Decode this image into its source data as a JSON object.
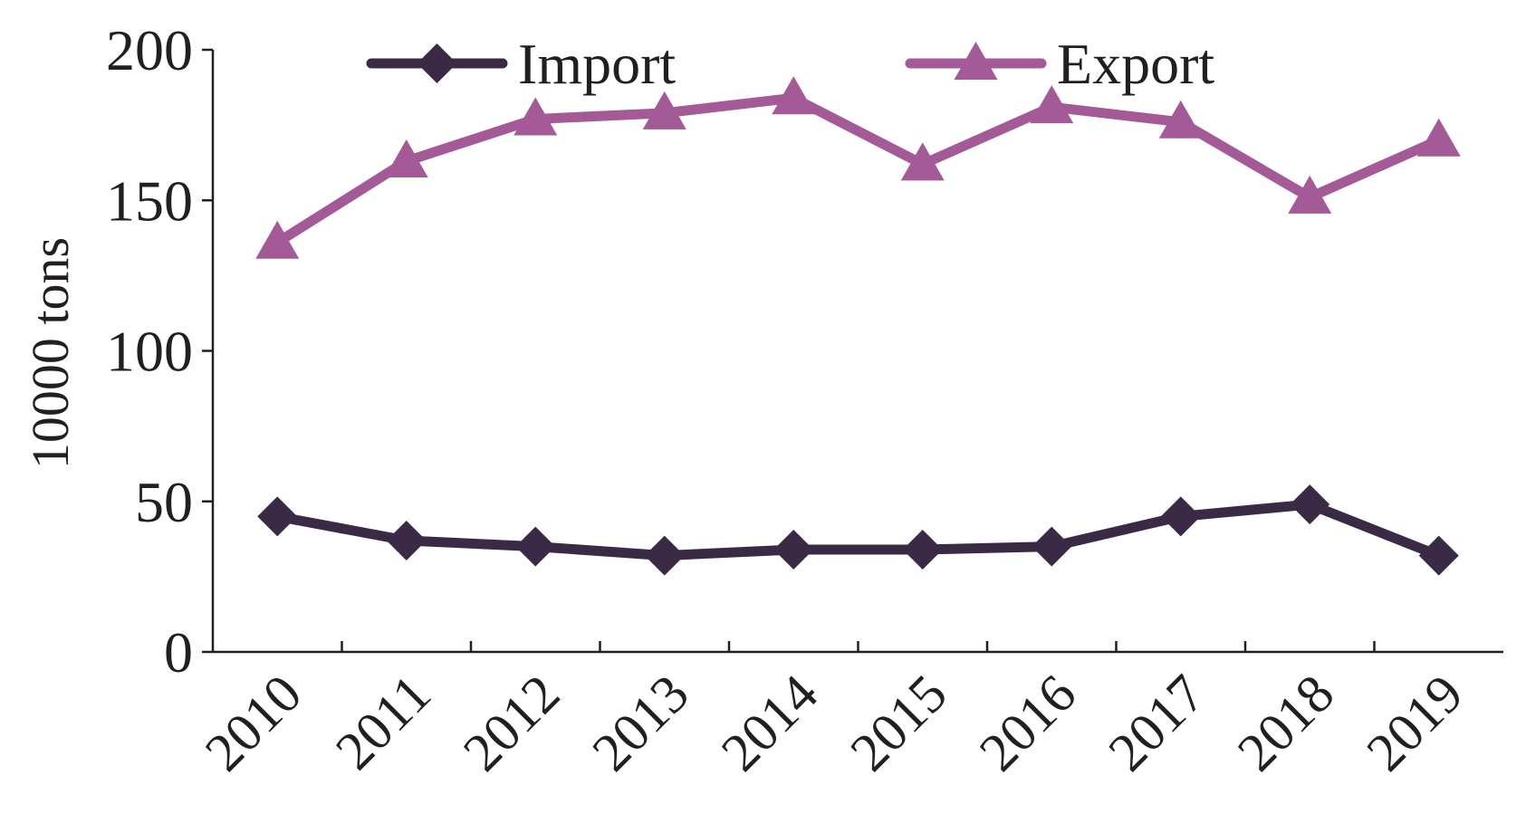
{
  "chart_data": {
    "type": "line",
    "ylabel": "10000 tons",
    "xlabel": "",
    "categories": [
      "2010",
      "2011",
      "2012",
      "2013",
      "2014",
      "2015",
      "2016",
      "2017",
      "2018",
      "2019"
    ],
    "ylim": [
      0,
      200
    ],
    "yticks": [
      "0",
      "50",
      "100",
      "150",
      "200"
    ],
    "grid": false,
    "legend": "top",
    "series": [
      {
        "name": "Import",
        "color": "#3b2a45",
        "marker": "diamond",
        "values": [
          45,
          37,
          35,
          32,
          34,
          34,
          35,
          45,
          49,
          32
        ]
      },
      {
        "name": "Export",
        "color": "#a55a98",
        "marker": "triangle",
        "values": [
          136,
          163,
          177,
          179,
          184,
          162,
          181,
          176,
          151,
          170
        ]
      }
    ]
  }
}
